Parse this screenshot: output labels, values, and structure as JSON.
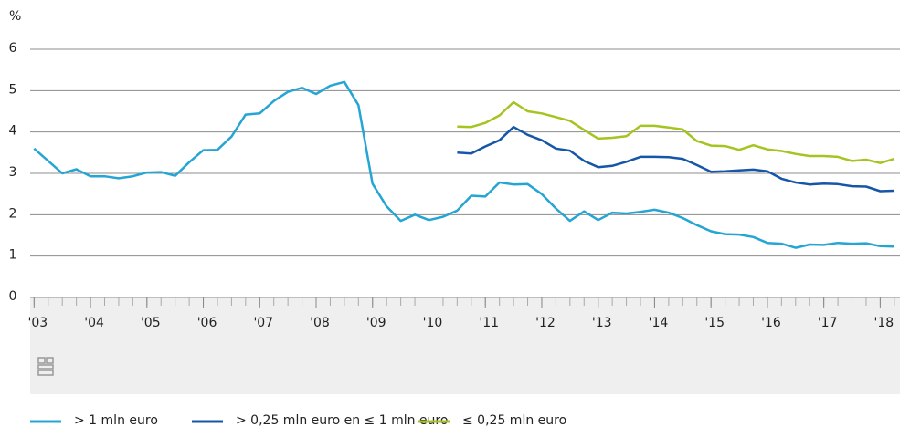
{
  "chart_data": {
    "type": "line",
    "y_label": "%",
    "x": [
      2003,
      2003.25,
      2003.5,
      2003.75,
      2004,
      2004.25,
      2004.5,
      2004.75,
      2005,
      2005.25,
      2005.5,
      2005.75,
      2006,
      2006.25,
      2006.5,
      2006.75,
      2007,
      2007.25,
      2007.5,
      2007.75,
      2008,
      2008.25,
      2008.5,
      2008.75,
      2009,
      2009.25,
      2009.5,
      2009.75,
      2010,
      2010.25,
      2010.5,
      2010.75,
      2011,
      2011.25,
      2011.5,
      2011.75,
      2012,
      2012.25,
      2012.5,
      2012.75,
      2013,
      2013.25,
      2013.5,
      2013.75,
      2014,
      2014.25,
      2014.5,
      2014.75,
      2015,
      2015.25,
      2015.5,
      2015.75,
      2016,
      2016.25,
      2016.5,
      2016.75,
      2017,
      2017.25,
      2017.5,
      2017.75,
      2018,
      2018.25
    ],
    "series": [
      {
        "name": "> 1 mln euro",
        "color": "#25a5d4",
        "values": [
          3.6,
          3.3,
          3.0,
          3.1,
          2.93,
          2.93,
          2.88,
          2.93,
          3.02,
          3.03,
          2.94,
          3.27,
          3.56,
          3.57,
          3.89,
          4.42,
          4.45,
          4.75,
          4.97,
          5.07,
          4.92,
          5.12,
          5.21,
          4.65,
          2.75,
          2.2,
          1.85,
          2.0,
          1.87,
          1.95,
          2.1,
          2.46,
          2.44,
          2.78,
          2.73,
          2.74,
          2.5,
          2.15,
          1.85,
          2.08,
          1.87,
          2.05,
          2.03,
          2.07,
          2.12,
          2.05,
          1.92,
          1.75,
          1.6,
          1.53,
          1.52,
          1.46,
          1.32,
          1.3,
          1.2,
          1.28,
          1.27,
          1.32,
          1.3,
          1.31,
          1.24,
          1.23
        ]
      },
      {
        "name": "> 0,25 mln euro  en ≤ 1 mln euro",
        "color": "#1656a8",
        "values": [
          null,
          null,
          null,
          null,
          null,
          null,
          null,
          null,
          null,
          null,
          null,
          null,
          null,
          null,
          null,
          null,
          null,
          null,
          null,
          null,
          null,
          null,
          null,
          null,
          null,
          null,
          null,
          null,
          null,
          null,
          3.5,
          3.48,
          3.65,
          3.8,
          4.12,
          3.93,
          3.8,
          3.6,
          3.55,
          3.3,
          3.15,
          3.18,
          3.28,
          3.4,
          3.4,
          3.39,
          3.35,
          3.2,
          3.04,
          3.05,
          3.07,
          3.09,
          3.05,
          2.87,
          2.78,
          2.73,
          2.75,
          2.74,
          2.69,
          2.68,
          2.57,
          2.58
        ]
      },
      {
        "name": "≤ 0,25 mln euro",
        "color": "#a4c41f",
        "values": [
          null,
          null,
          null,
          null,
          null,
          null,
          null,
          null,
          null,
          null,
          null,
          null,
          null,
          null,
          null,
          null,
          null,
          null,
          null,
          null,
          null,
          null,
          null,
          null,
          null,
          null,
          null,
          null,
          null,
          null,
          4.13,
          4.12,
          4.22,
          4.4,
          4.72,
          4.5,
          4.45,
          4.36,
          4.27,
          4.05,
          3.84,
          3.86,
          3.9,
          4.15,
          4.15,
          4.11,
          4.06,
          3.78,
          3.67,
          3.66,
          3.57,
          3.68,
          3.58,
          3.54,
          3.47,
          3.42,
          3.42,
          3.4,
          3.3,
          3.33,
          3.25,
          3.35
        ]
      }
    ],
    "xlim": [
      2002.93,
      2018.35
    ],
    "xticks": [
      {
        "value": 2003,
        "label": "'03"
      },
      {
        "value": 2004,
        "label": "'04"
      },
      {
        "value": 2005,
        "label": "'05"
      },
      {
        "value": 2006,
        "label": "'06"
      },
      {
        "value": 2007,
        "label": "'07"
      },
      {
        "value": 2008,
        "label": "'08"
      },
      {
        "value": 2009,
        "label": "'09"
      },
      {
        "value": 2010,
        "label": "'10"
      },
      {
        "value": 2011,
        "label": "'11"
      },
      {
        "value": 2012,
        "label": "'12"
      },
      {
        "value": 2013,
        "label": "'13"
      },
      {
        "value": 2014,
        "label": "'14"
      },
      {
        "value": 2015,
        "label": "'15"
      },
      {
        "value": 2016,
        "label": "'16"
      },
      {
        "value": 2017,
        "label": "'17"
      },
      {
        "value": 2018,
        "label": "'18"
      }
    ],
    "ylim": [
      0,
      6
    ],
    "yticks": [
      0,
      1,
      2,
      3,
      4,
      5,
      6
    ],
    "grid": true
  }
}
